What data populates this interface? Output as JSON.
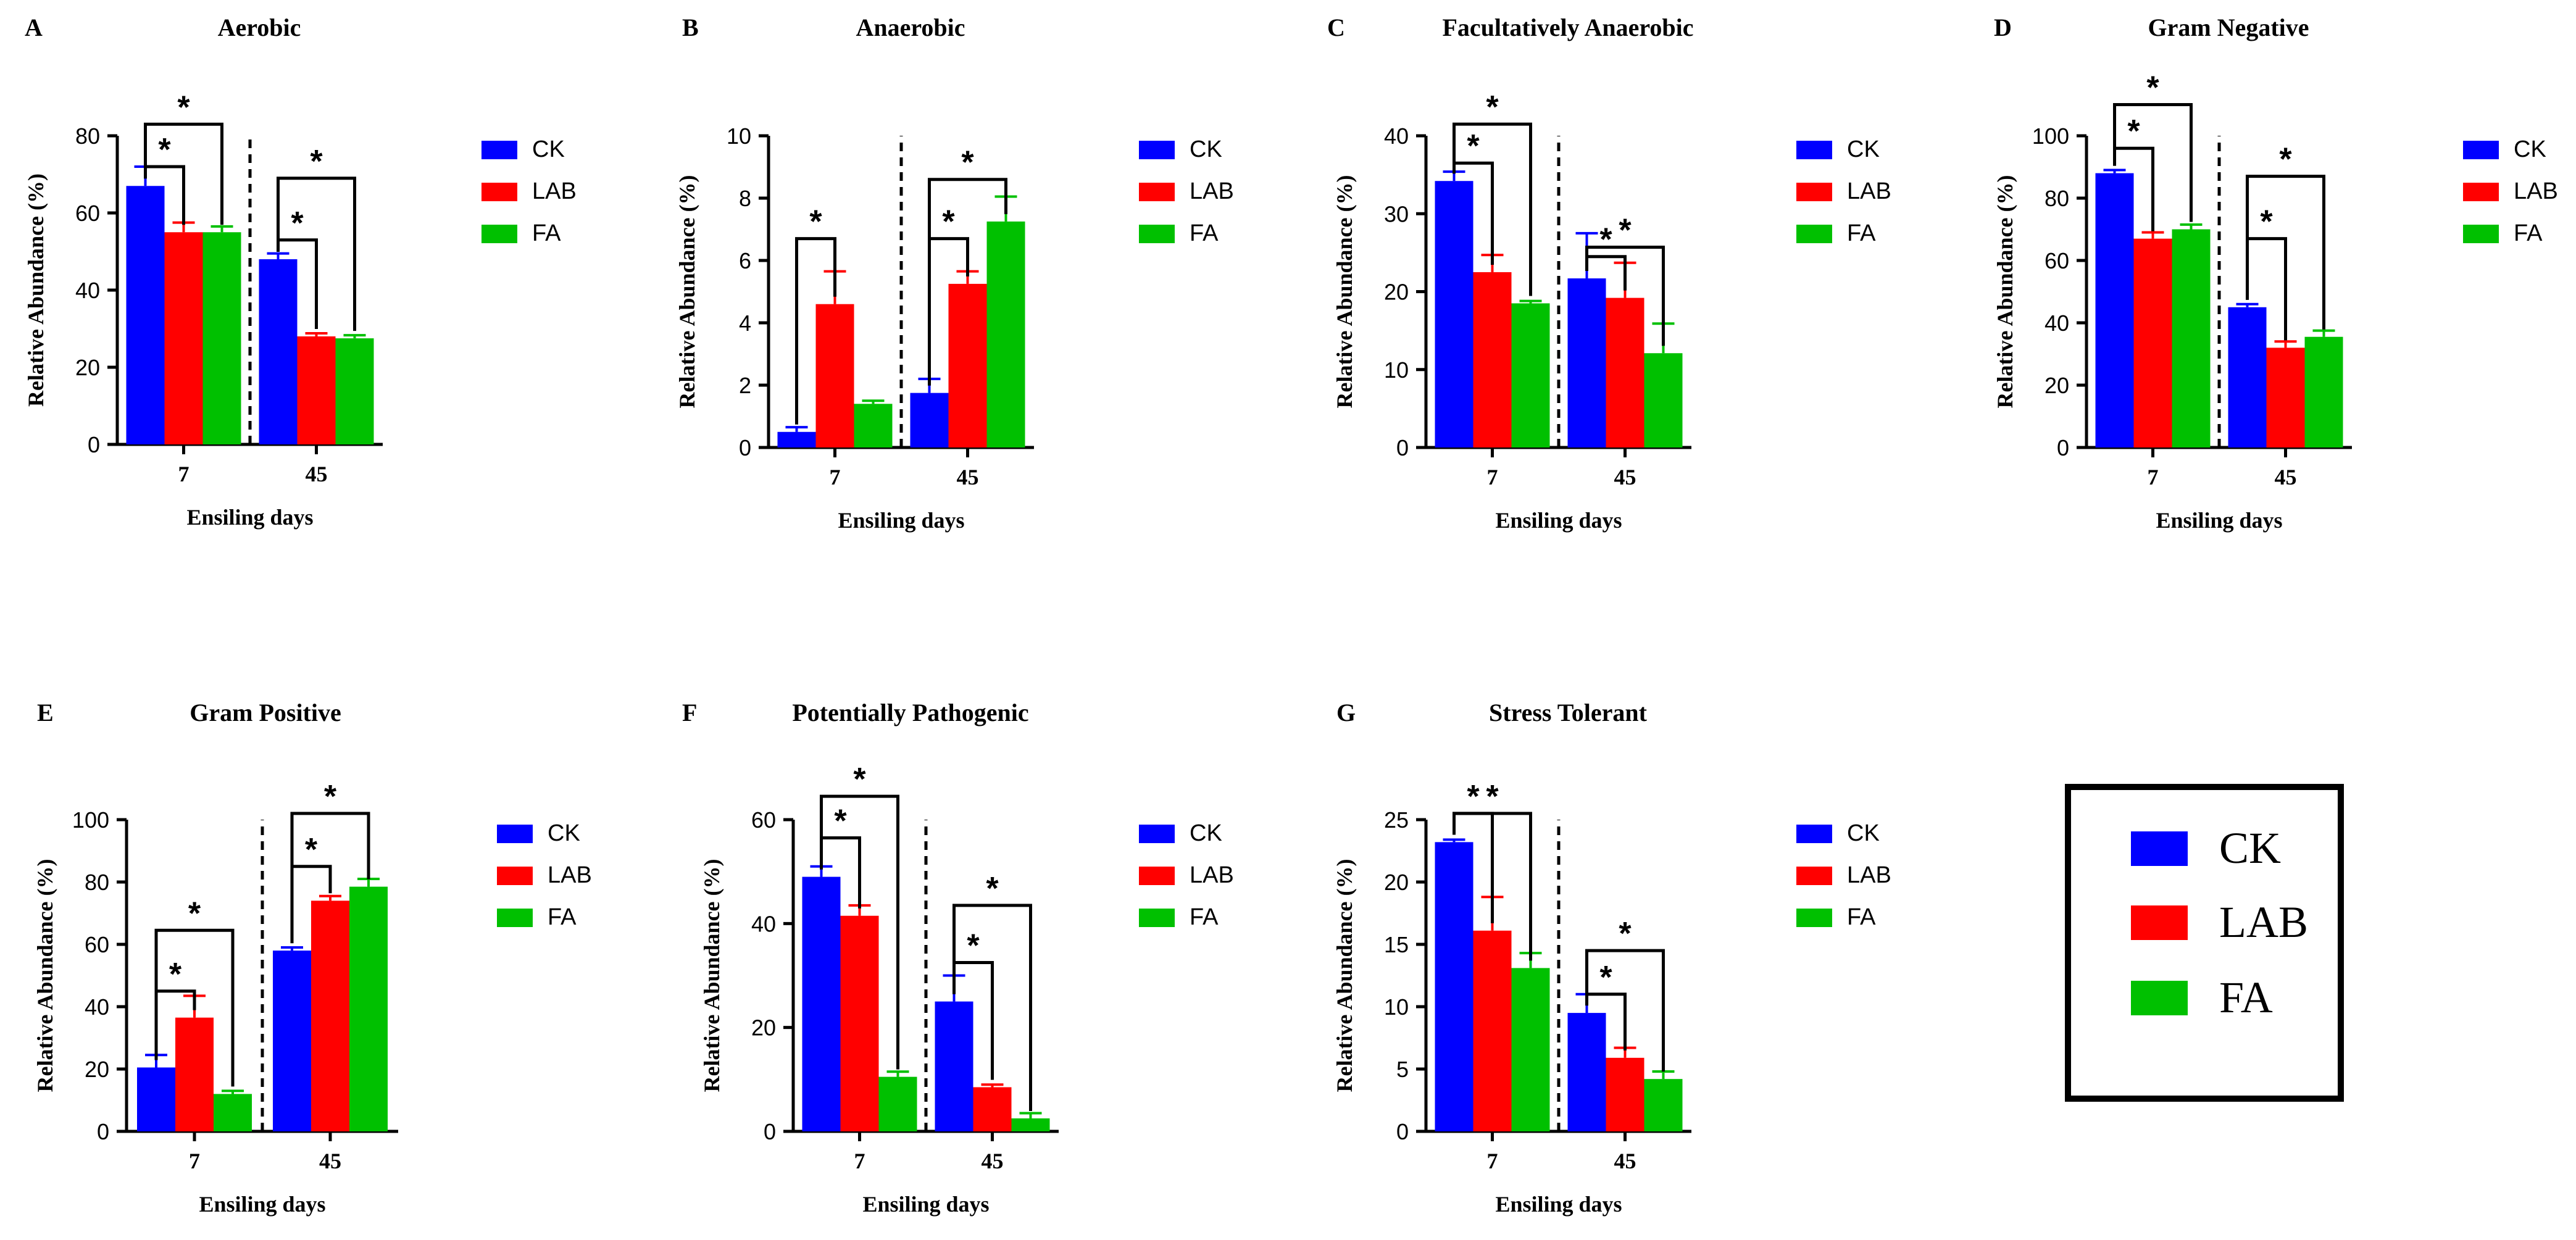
{
  "chart_data": [
    {
      "panel_label": "A",
      "title": "Aerobic",
      "type": "bar",
      "categories": [
        "7",
        "45"
      ],
      "xlabel": "Ensiling days",
      "ylabel": "Relative Abundance (%)",
      "ylim": [
        0,
        80
      ],
      "yticks": [
        "0",
        "20",
        "40",
        "60",
        "80"
      ],
      "series": [
        {
          "name": "CK",
          "color": "#0000ff",
          "values": [
            67,
            48
          ],
          "errors": [
            5,
            1.5
          ]
        },
        {
          "name": "LAB",
          "color": "#ff0000",
          "values": [
            55,
            28
          ],
          "errors": [
            2.5,
            0.8
          ]
        },
        {
          "name": "FA",
          "color": "#00c000",
          "values": [
            55,
            27.5
          ],
          "errors": [
            1.5,
            0.8
          ]
        }
      ],
      "significance": [
        {
          "day": 0,
          "from": 0,
          "to": 1,
          "label": "*",
          "level": 72,
          "drop": 67
        },
        {
          "day": 0,
          "from": 0,
          "to": 2,
          "label": "*",
          "level": 83,
          "drop": 67
        },
        {
          "day": 1,
          "from": 0,
          "to": 1,
          "label": "*",
          "level": 53,
          "drop": 48
        },
        {
          "day": 1,
          "from": 0,
          "to": 2,
          "label": "*",
          "level": 69,
          "drop": 48
        }
      ],
      "legend": [
        "CK",
        "LAB",
        "FA"
      ]
    },
    {
      "panel_label": "B",
      "title": "Anaerobic",
      "type": "bar",
      "categories": [
        "7",
        "45"
      ],
      "xlabel": "Ensiling days",
      "ylabel": "Relative Abundance (%)",
      "ylim": [
        0,
        10
      ],
      "yticks": [
        "0",
        "2",
        "4",
        "6",
        "8",
        "10"
      ],
      "series": [
        {
          "name": "CK",
          "color": "#0000ff",
          "values": [
            0.5,
            1.75
          ],
          "errors": [
            0.15,
            0.45
          ]
        },
        {
          "name": "LAB",
          "color": "#ff0000",
          "values": [
            4.6,
            5.25
          ],
          "errors": [
            1.05,
            0.4
          ]
        },
        {
          "name": "FA",
          "color": "#00c000",
          "values": [
            1.4,
            7.25
          ],
          "errors": [
            0.1,
            0.8
          ]
        }
      ],
      "significance": [
        {
          "day": 0,
          "from": 0,
          "to": 1,
          "label": "*",
          "level": 6.7,
          "drop": 0.5
        },
        {
          "day": 1,
          "from": 0,
          "to": 1,
          "label": "*",
          "level": 6.7,
          "drop": 1.75
        },
        {
          "day": 1,
          "from": 0,
          "to": 2,
          "label": "*",
          "level": 8.6,
          "drop": 1.75
        }
      ],
      "legend": [
        "CK",
        "LAB",
        "FA"
      ]
    },
    {
      "panel_label": "C",
      "title": "Facultatively Anaerobic",
      "type": "bar",
      "categories": [
        "7",
        "45"
      ],
      "xlabel": "Ensiling days",
      "ylabel": "Relative Abundance (%)",
      "ylim": [
        0,
        40
      ],
      "yticks": [
        "0",
        "10",
        "20",
        "30",
        "40"
      ],
      "series": [
        {
          "name": "CK",
          "color": "#0000ff",
          "values": [
            34.2,
            21.7
          ],
          "errors": [
            1.2,
            5.8
          ]
        },
        {
          "name": "LAB",
          "color": "#ff0000",
          "values": [
            22.5,
            19.2
          ],
          "errors": [
            2.2,
            4.5
          ]
        },
        {
          "name": "FA",
          "color": "#00c000",
          "values": [
            18.5,
            12.1
          ],
          "errors": [
            0.3,
            3.8
          ]
        }
      ],
      "significance": [
        {
          "day": 0,
          "from": 0,
          "to": 1,
          "label": "*",
          "level": 36.5,
          "drop": 34.2
        },
        {
          "day": 0,
          "from": 0,
          "to": 2,
          "label": "*",
          "level": 41.5,
          "drop": 34.2
        },
        {
          "day": 1,
          "from": 0,
          "to": 1,
          "label": "*",
          "level": 24.5,
          "drop": 21.7
        },
        {
          "day": 1,
          "from": 0,
          "to": 2,
          "label": "*",
          "level": 25.7,
          "drop": 21.7
        }
      ],
      "legend": [
        "CK",
        "LAB",
        "FA"
      ]
    },
    {
      "panel_label": "D",
      "title": "Gram Negative",
      "type": "bar",
      "categories": [
        "7",
        "45"
      ],
      "xlabel": "Ensiling days",
      "ylabel": "Relative Abundance (%)",
      "ylim": [
        0,
        100
      ],
      "yticks": [
        "0",
        "20",
        "40",
        "60",
        "80",
        "100"
      ],
      "series": [
        {
          "name": "CK",
          "color": "#0000ff",
          "values": [
            88,
            45
          ],
          "errors": [
            1,
            1
          ]
        },
        {
          "name": "LAB",
          "color": "#ff0000",
          "values": [
            67,
            32
          ],
          "errors": [
            2,
            2
          ]
        },
        {
          "name": "FA",
          "color": "#00c000",
          "values": [
            70,
            35.5
          ],
          "errors": [
            1.5,
            2
          ]
        }
      ],
      "significance": [
        {
          "day": 0,
          "from": 0,
          "to": 1,
          "label": "*",
          "level": 96,
          "drop": 88
        },
        {
          "day": 0,
          "from": 0,
          "to": 2,
          "label": "*",
          "level": 110,
          "drop": 88
        },
        {
          "day": 1,
          "from": 0,
          "to": 1,
          "label": "*",
          "level": 67,
          "drop": 45
        },
        {
          "day": 1,
          "from": 0,
          "to": 2,
          "label": "*",
          "level": 87,
          "drop": 45
        }
      ],
      "legend": [
        "CK",
        "LAB",
        "FA"
      ]
    },
    {
      "panel_label": "E",
      "title": "Gram Positive",
      "type": "bar",
      "categories": [
        "7",
        "45"
      ],
      "xlabel": "Ensiling days",
      "ylabel": "Relative Abundance (%)",
      "ylim": [
        0,
        100
      ],
      "yticks": [
        "0",
        "20",
        "40",
        "60",
        "80",
        "100"
      ],
      "series": [
        {
          "name": "CK",
          "color": "#0000ff",
          "values": [
            20.5,
            58
          ],
          "errors": [
            4,
            1
          ]
        },
        {
          "name": "LAB",
          "color": "#ff0000",
          "values": [
            36.5,
            74
          ],
          "errors": [
            7,
            1.5
          ]
        },
        {
          "name": "FA",
          "color": "#00c000",
          "values": [
            12,
            78.5
          ],
          "errors": [
            1,
            2.5
          ]
        }
      ],
      "significance": [
        {
          "day": 0,
          "from": 0,
          "to": 1,
          "label": "*",
          "level": 45,
          "drop": 20.5
        },
        {
          "day": 0,
          "from": 0,
          "to": 2,
          "label": "*",
          "level": 64.5,
          "drop": 20.5
        },
        {
          "day": 1,
          "from": 0,
          "to": 1,
          "label": "*",
          "level": 85,
          "drop": 58
        },
        {
          "day": 1,
          "from": 0,
          "to": 2,
          "label": "*",
          "level": 102,
          "drop": 58
        }
      ],
      "legend": [
        "CK",
        "LAB",
        "FA"
      ]
    },
    {
      "panel_label": "F",
      "title": "Potentially Pathogenic",
      "type": "bar",
      "categories": [
        "7",
        "45"
      ],
      "xlabel": "Ensiling days",
      "ylabel": "Relative Abundance (%)",
      "ylim": [
        0,
        60
      ],
      "yticks": [
        "0",
        "20",
        "40",
        "60"
      ],
      "series": [
        {
          "name": "CK",
          "color": "#0000ff",
          "values": [
            49,
            25
          ],
          "errors": [
            2,
            5
          ]
        },
        {
          "name": "LAB",
          "color": "#ff0000",
          "values": [
            41.5,
            8.5
          ],
          "errors": [
            2,
            0.5
          ]
        },
        {
          "name": "FA",
          "color": "#00c000",
          "values": [
            10.5,
            2.5
          ],
          "errors": [
            1,
            1
          ]
        }
      ],
      "significance": [
        {
          "day": 0,
          "from": 0,
          "to": 1,
          "label": "*",
          "level": 56.5,
          "drop": 49
        },
        {
          "day": 0,
          "from": 0,
          "to": 2,
          "label": "*",
          "level": 64.5,
          "drop": 49
        },
        {
          "day": 1,
          "from": 0,
          "to": 1,
          "label": "*",
          "level": 32.5,
          "drop": 25
        },
        {
          "day": 1,
          "from": 0,
          "to": 2,
          "label": "*",
          "level": 43.5,
          "drop": 25
        }
      ],
      "legend": [
        "CK",
        "LAB",
        "FA"
      ]
    },
    {
      "panel_label": "G",
      "title": "Stress Tolerant",
      "type": "bar",
      "categories": [
        "7",
        "45"
      ],
      "xlabel": "Ensiling days",
      "ylabel": "Relative Abundance (%)",
      "ylim": [
        0,
        25
      ],
      "yticks": [
        "0",
        "5",
        "10",
        "15",
        "20",
        "25"
      ],
      "series": [
        {
          "name": "CK",
          "color": "#0000ff",
          "values": [
            23.2,
            9.5
          ],
          "errors": [
            0.2,
            1.5
          ]
        },
        {
          "name": "LAB",
          "color": "#ff0000",
          "values": [
            16.1,
            5.9
          ],
          "errors": [
            2.7,
            0.8
          ]
        },
        {
          "name": "FA",
          "color": "#00c000",
          "values": [
            13.1,
            4.2
          ],
          "errors": [
            1.2,
            0.6
          ]
        }
      ],
      "significance": [
        {
          "day": 0,
          "from": 0,
          "to": 1,
          "label": "*",
          "level": 25.5,
          "drop": 23.2
        },
        {
          "day": 0,
          "from": 0,
          "to": 2,
          "label": "*",
          "level": 25.5,
          "drop": 23.2
        },
        {
          "day": 1,
          "from": 0,
          "to": 1,
          "label": "*",
          "level": 11,
          "drop": 9.5
        },
        {
          "day": 1,
          "from": 0,
          "to": 2,
          "label": "*",
          "level": 14.5,
          "drop": 9.5
        }
      ],
      "legend": [
        "CK",
        "LAB",
        "FA"
      ]
    }
  ],
  "shared_legend": {
    "items": [
      {
        "name": "CK",
        "color": "#0000ff"
      },
      {
        "name": "LAB",
        "color": "#ff0000"
      },
      {
        "name": "FA",
        "color": "#00c000"
      }
    ]
  }
}
